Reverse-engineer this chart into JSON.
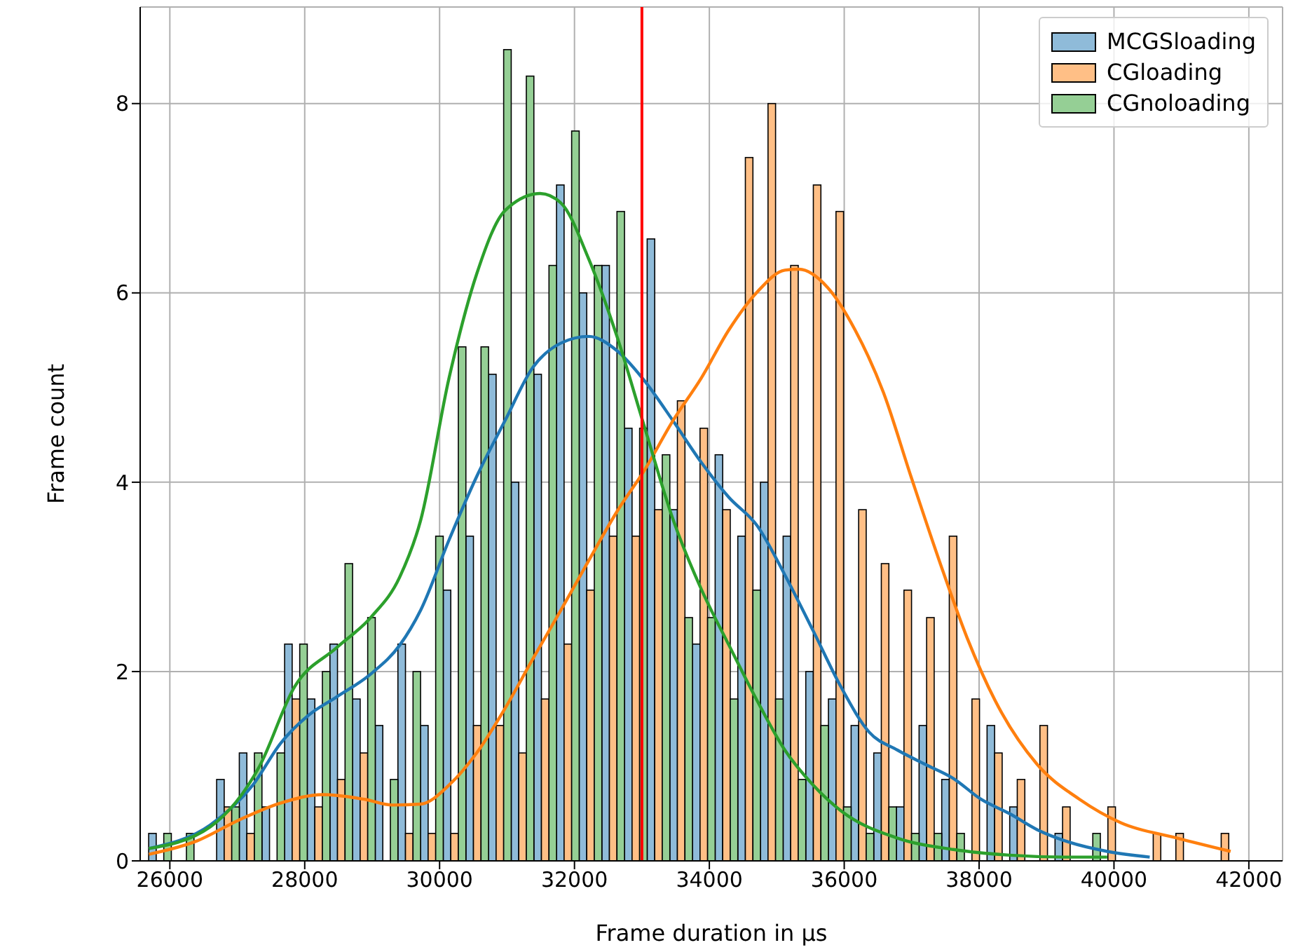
{
  "chart_data": {
    "type": "histogram",
    "xlabel": "Frame duration in μs",
    "ylabel": "Frame count",
    "bins": [
      25686,
      26022,
      26358,
      26694,
      27030,
      27366,
      27702,
      28038,
      28374,
      28710,
      29046,
      29382,
      29718,
      30054,
      30390,
      30726,
      31062,
      31398,
      31734,
      32070,
      32406,
      32742,
      33078,
      33414,
      33750,
      34086,
      34422,
      34758,
      35094,
      35430,
      35766,
      36102,
      36438,
      36774,
      37110,
      37446,
      37782,
      38118,
      38454,
      38790,
      39126,
      39462,
      39798,
      40134,
      40470,
      40806,
      41142,
      41478,
      41814
    ],
    "series": [
      {
        "name": "MCGSloading",
        "type": "histogram",
        "color": "#8fbbd9",
        "values": [
          0.29,
          0,
          0,
          0.86,
          1.14,
          0.57,
          2.29,
          1.71,
          2.29,
          1.71,
          1.43,
          2.29,
          1.43,
          2.86,
          3.43,
          5.14,
          4.0,
          5.14,
          7.14,
          6.0,
          6.29,
          4.57,
          6.57,
          3.71,
          2.29,
          4.29,
          3.43,
          4.0,
          3.43,
          2.0,
          1.71,
          1.43,
          1.14,
          0.57,
          1.43,
          0.86,
          0,
          1.43,
          0.57,
          0,
          0.29,
          0,
          0,
          0,
          0,
          0,
          0,
          0
        ]
      },
      {
        "name": "CGloading",
        "type": "histogram",
        "color": "#ffbf86",
        "values": [
          0,
          0,
          0,
          0.57,
          0.29,
          0,
          1.71,
          0.57,
          0.86,
          1.14,
          0,
          0.29,
          0.29,
          0.29,
          1.43,
          1.43,
          1.14,
          1.71,
          2.29,
          2.86,
          3.43,
          3.43,
          3.71,
          4.86,
          4.57,
          3.71,
          7.43,
          8.0,
          6.29,
          7.14,
          6.86,
          3.71,
          3.14,
          2.86,
          2.57,
          3.43,
          1.71,
          1.14,
          0.86,
          1.43,
          0.57,
          0,
          0.57,
          0,
          0.29,
          0.29,
          0,
          0.29
        ]
      },
      {
        "name": "CGnoloading",
        "type": "histogram",
        "color": "#95cf95",
        "values": [
          0.29,
          0.29,
          0,
          0.57,
          1.14,
          1.14,
          2.29,
          2.0,
          3.14,
          2.57,
          0.86,
          2.0,
          3.43,
          5.43,
          5.43,
          8.57,
          8.29,
          6.29,
          7.71,
          6.29,
          6.86,
          4.57,
          4.29,
          2.57,
          2.57,
          1.71,
          2.86,
          1.71,
          0.86,
          1.43,
          0.57,
          0.29,
          0.57,
          0.29,
          0.29,
          0.29,
          0,
          0,
          0,
          0,
          0,
          0.29,
          0,
          0,
          0,
          0,
          0,
          0
        ]
      },
      {
        "type": "line",
        "color": "#1f77b4",
        "x": [
          25690,
          26600,
          27230,
          27640,
          28060,
          28470,
          28990,
          29410,
          29720,
          30140,
          30550,
          30970,
          31380,
          31800,
          32210,
          32630,
          33040,
          33460,
          33880,
          34290,
          34710,
          35120,
          35540,
          35950,
          36370,
          36790,
          37200,
          37620,
          38030,
          38450,
          38860,
          39280,
          39900,
          40530
        ],
        "values": [
          0.13,
          0.38,
          0.8,
          1.24,
          1.54,
          1.73,
          1.98,
          2.28,
          2.65,
          3.39,
          4.06,
          4.65,
          5.21,
          5.47,
          5.54,
          5.39,
          5.07,
          4.65,
          4.21,
          3.84,
          3.54,
          3.02,
          2.43,
          1.84,
          1.36,
          1.17,
          1.02,
          0.87,
          0.65,
          0.5,
          0.33,
          0.21,
          0.1,
          0.04
        ]
      },
      {
        "type": "line",
        "color": "#ff7f0e",
        "x": [
          25690,
          26400,
          27020,
          27640,
          28270,
          28890,
          29300,
          29720,
          30140,
          30550,
          30970,
          31380,
          31800,
          32210,
          32630,
          33040,
          33460,
          33880,
          34290,
          34710,
          35120,
          35330,
          35750,
          36160,
          36580,
          36990,
          37410,
          37820,
          38240,
          38860,
          39490,
          40110,
          40940,
          41730
        ],
        "values": [
          0.07,
          0.21,
          0.43,
          0.61,
          0.7,
          0.65,
          0.59,
          0.6,
          0.8,
          1.14,
          1.61,
          2.13,
          2.65,
          3.17,
          3.69,
          4.13,
          4.65,
          5.1,
          5.61,
          6.01,
          6.24,
          6.25,
          6.06,
          5.61,
          4.95,
          4.06,
          3.17,
          2.36,
          1.69,
          1.02,
          0.65,
          0.4,
          0.24,
          0.1
        ]
      },
      {
        "type": "line",
        "color": "#2ca02c",
        "x": [
          25690,
          26600,
          27330,
          27850,
          28470,
          28990,
          29410,
          29720,
          30140,
          30550,
          30970,
          31490,
          31800,
          32210,
          32630,
          33040,
          33460,
          33880,
          34290,
          34710,
          35120,
          35540,
          35950,
          36790,
          37620,
          38450,
          39280,
          39900
        ],
        "values": [
          0.13,
          0.36,
          1.0,
          1.84,
          2.25,
          2.58,
          3.0,
          3.6,
          5.1,
          6.2,
          6.87,
          7.05,
          6.95,
          6.36,
          5.54,
          4.58,
          3.61,
          2.87,
          2.28,
          1.69,
          1.17,
          0.8,
          0.53,
          0.24,
          0.12,
          0.06,
          0.04,
          0.04
        ]
      }
    ],
    "ref_lines": [
      {
        "axis": "x",
        "value": 33000,
        "color": "#ff0000"
      }
    ],
    "xlim": [
      25560,
      42500
    ],
    "xticks": [
      26000,
      28000,
      30000,
      32000,
      34000,
      36000,
      38000,
      40000,
      42000
    ],
    "ylim": [
      0,
      9.02
    ],
    "yticks": [
      0,
      2,
      4,
      6,
      8
    ],
    "grid": true,
    "legend": "top right"
  }
}
